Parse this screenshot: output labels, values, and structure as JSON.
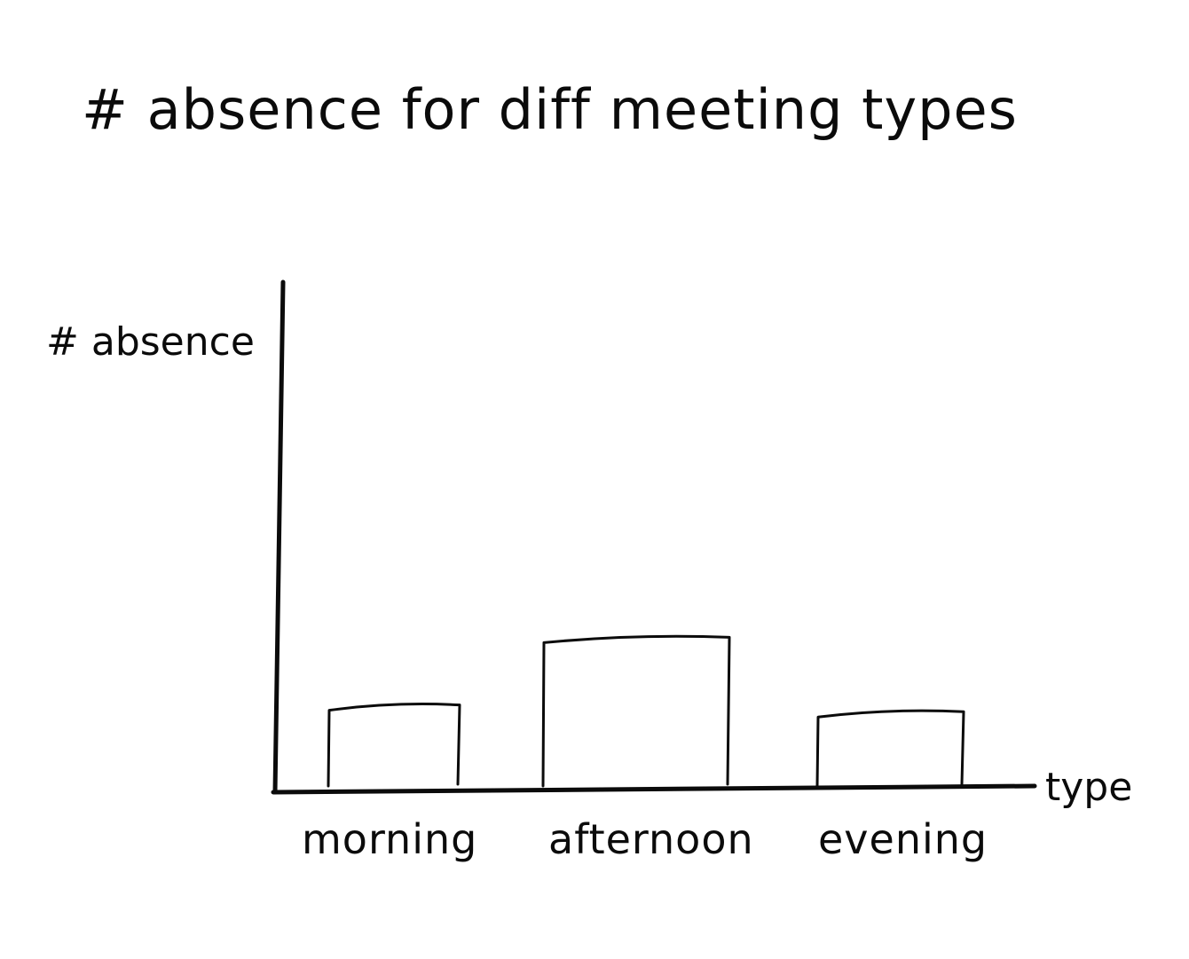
{
  "chart_data": {
    "type": "bar",
    "title": "# absence for diff meeting types",
    "ylabel": "# absence",
    "xlabel": "type",
    "categories": [
      "morning",
      "afternoon",
      "evening"
    ],
    "values": [
      2.5,
      4.5,
      2.3
    ],
    "ylim": [
      0,
      15
    ],
    "grid": false,
    "legend": "none",
    "ink_color": "#0b0b0b",
    "background_color": "#ffffff"
  }
}
